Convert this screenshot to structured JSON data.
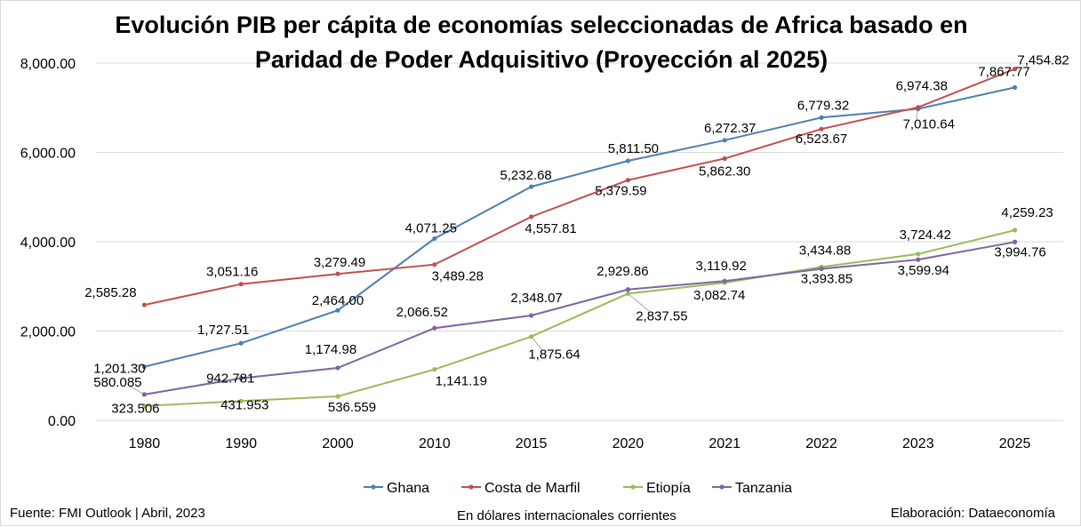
{
  "chart_data": {
    "type": "line",
    "title_lines": [
      "Evolución PIB per cápita de economías seleccionadas de Africa basado en",
      "Paridad de Poder Adquisitivo (Proyección al 2025)"
    ],
    "categories": [
      "1980",
      "1990",
      "2000",
      "2010",
      "2015",
      "2020",
      "2021",
      "2022",
      "2023",
      "2025"
    ],
    "ylim": [
      0,
      8000
    ],
    "yticks": [
      0,
      2000,
      4000,
      6000,
      8000
    ],
    "ytick_labels": [
      "0.00",
      "2,000.00",
      "4,000.00",
      "6,000.00",
      "8,000.00"
    ],
    "grid": true,
    "legend_position": "bottom",
    "series": [
      {
        "name": "Ghana",
        "color": "#4e7fb0",
        "values": [
          1201.3,
          1727.51,
          2464.0,
          4071.25,
          5232.68,
          5811.5,
          6272.37,
          6779.32,
          6974.38,
          7454.82
        ],
        "labels": [
          "1,201.30",
          "1,727.51",
          "2,464.00",
          "4,071.25",
          "5,232.68",
          "5,811.50",
          "6,272.37",
          "6,779.32",
          "6,974.38",
          "7,454.82"
        ]
      },
      {
        "name": "Costa de Marfil",
        "color": "#c0504d",
        "values": [
          2585.28,
          3051.16,
          3279.49,
          3489.28,
          4557.81,
          5379.59,
          5862.3,
          6523.67,
          7010.64,
          7867.77
        ],
        "labels": [
          "2,585.28",
          "3,051.16",
          "3,279.49",
          "3,489.28",
          "4,557.81",
          "5,379.59",
          "5,862.30",
          "6,523.67",
          "7,010.64",
          "7,867.77"
        ]
      },
      {
        "name": "Etiopía",
        "color": "#9bbb59",
        "values": [
          323.506,
          431.953,
          536.559,
          1141.19,
          1875.64,
          2837.55,
          3082.74,
          3434.88,
          3724.42,
          4259.23
        ],
        "labels": [
          "323.506",
          "431.953",
          "536.559",
          "1,141.19",
          "1,875.64",
          "2,837.55",
          "3,082.74",
          "3,434.88",
          "3,724.42",
          "4,259.23"
        ]
      },
      {
        "name": "Tanzania",
        "color": "#8064a2",
        "values": [
          580.085,
          942.781,
          1174.98,
          2066.52,
          2348.07,
          2929.86,
          3119.92,
          3393.85,
          3599.94,
          3994.76
        ],
        "labels": [
          "580.085",
          "942.781",
          "1,174.98",
          "2,066.52",
          "2,348.07",
          "2,929.86",
          "3,119.92",
          "3,393.85",
          "3,599.94",
          "3,994.76"
        ]
      }
    ]
  },
  "footer": {
    "source": "Fuente: FMI Outlook | Abril, 2023",
    "units": "En dólares internacionales corrientes",
    "credit": "Elaboración: Dataeconomía"
  }
}
